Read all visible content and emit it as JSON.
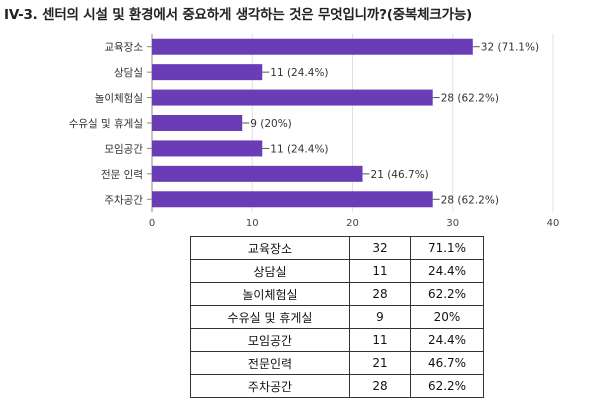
{
  "title": "IV-3. 센터의 시설 및 환경에서 중요하게 생각하는 것은 무엇입니까?(중복체크가능)",
  "colors": {
    "bar": "#6a3cb6",
    "grid": "#e0e0e0",
    "axis": "#888888"
  },
  "chart_data": {
    "type": "bar",
    "orientation": "horizontal",
    "categories": [
      "교육장소",
      "상담실",
      "놀이체험실",
      "수유실 및 휴게실",
      "모임공간",
      "전문 인력",
      "주차공간"
    ],
    "values": [
      32,
      11,
      28,
      9,
      11,
      21,
      28
    ],
    "data_labels": [
      "32 (71.1%)",
      "11 (24.4%)",
      "28 (62.2%)",
      "9 (20%)",
      "11 (24.4%)",
      "21 (46.7%)",
      "28 (62.2%)"
    ],
    "xlim": [
      0,
      40
    ],
    "xticks": [
      0,
      10,
      20,
      30,
      40
    ],
    "grid": true
  },
  "table": {
    "rows": [
      [
        "교육장소",
        "32",
        "71.1%"
      ],
      [
        "상담실",
        "11",
        "24.4%"
      ],
      [
        "놀이체험실",
        "28",
        "62.2%"
      ],
      [
        "수유실 및 휴게실",
        "9",
        "20%"
      ],
      [
        "모임공간",
        "11",
        "24.4%"
      ],
      [
        "전문인력",
        "21",
        "46.7%"
      ],
      [
        "주차공간",
        "28",
        "62.2%"
      ]
    ]
  }
}
